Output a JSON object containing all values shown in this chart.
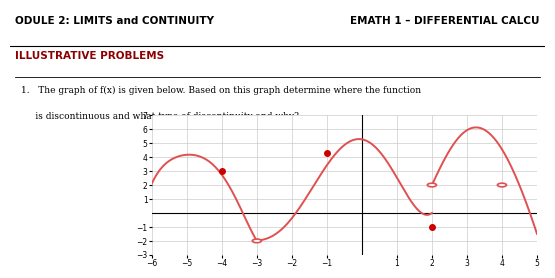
{
  "title_left": "ODULE 2: LIMITS and CONTINUITY",
  "title_right": "EMATH 1 – DIFFERENTIAL CALCU",
  "section_title": "ILLUSTRATIVE PROBLEMS",
  "problem_text_line1": "1.   The graph of f(x) is given below. Based on this graph determine where the function",
  "problem_text_line2": "     is discontinuous and what type of discontinuity and why?",
  "xmin": -6,
  "xmax": 5,
  "ymin": -3,
  "ymax": 7,
  "xticks": [
    -6,
    -5,
    -4,
    -3,
    -2,
    -1,
    1,
    2,
    3,
    4,
    5
  ],
  "yticks": [
    -3,
    -2,
    -1,
    1,
    2,
    3,
    4,
    5,
    6,
    7
  ],
  "curve_color": "#e05050",
  "dot_fill_color": "#cc0000",
  "dot_open_color": "#e05050",
  "background_color": "#ffffff",
  "grid_color": "#cccccc",
  "text_color": "#000000"
}
